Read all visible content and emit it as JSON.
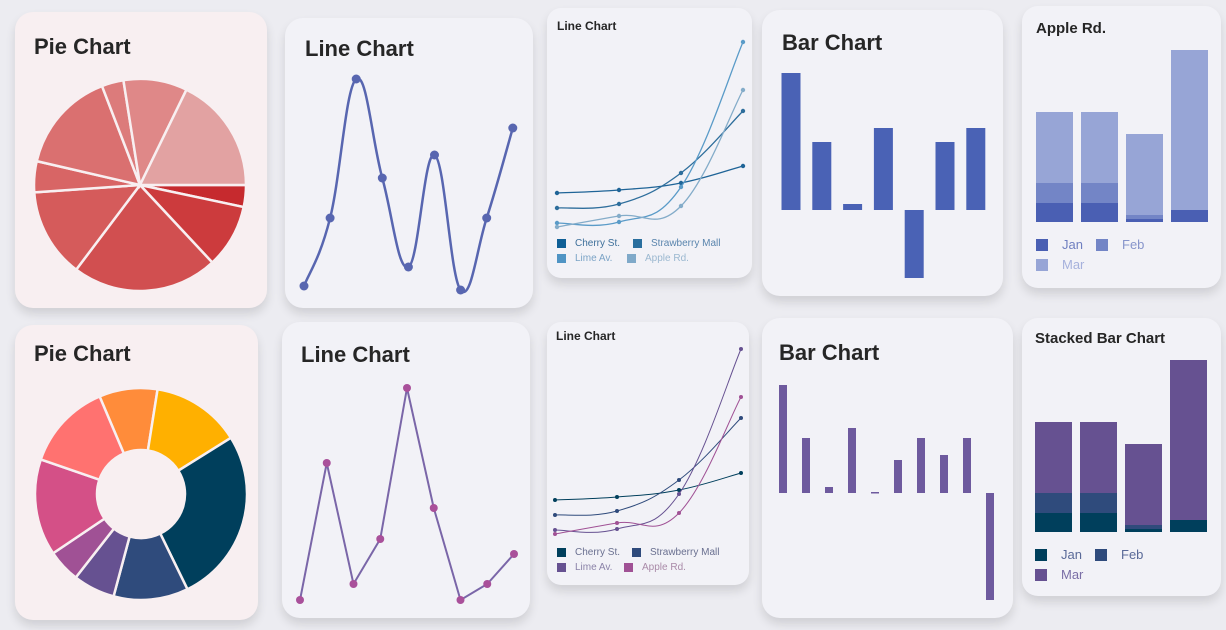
{
  "chart_data": [
    {
      "type": "pie",
      "title": "Pie Chart",
      "values": [
        12,
        35,
        80,
        49,
        17,
        56,
        12,
        35,
        64
      ],
      "colors": [
        "#c62a2e",
        "#cc3b3d",
        "#d14f50",
        "#d55b5b",
        "#d86565",
        "#da7070",
        "#dc7b7b",
        "#df8888",
        "#e2a2a2"
      ]
    },
    {
      "type": "line",
      "title": "Line Chart",
      "smooth": true,
      "values": [
        14,
        82,
        221,
        122,
        33,
        145,
        10,
        82,
        172
      ],
      "ylim": [
        0,
        230
      ],
      "color": "#5866b0"
    },
    {
      "type": "line",
      "title": "Line Chart",
      "smooth": true,
      "ylim": [
        0,
        220
      ],
      "series": [
        {
          "name": "Cherry St.",
          "values": [
            57,
            60,
            67,
            84
          ],
          "color": "#1f6497"
        },
        {
          "name": "Strawberry Mall",
          "values": [
            42,
            46,
            77,
            139
          ],
          "color": "#2e6e9c"
        },
        {
          "name": "Lime Av.",
          "values": [
            27,
            28,
            63,
            208
          ],
          "color": "#5a9bc8"
        },
        {
          "name": "Apple Rd.",
          "values": [
            23,
            34,
            44,
            160
          ],
          "color": "#84acc9"
        }
      ]
    },
    {
      "type": "bar",
      "title": "Bar Chart",
      "values": [
        137,
        68,
        6,
        82,
        -68,
        68,
        82
      ],
      "color": "#4a62b5"
    },
    {
      "type": "bar",
      "stacked": true,
      "title": "Apple Rd.",
      "series": [
        {
          "name": "Jan",
          "values": [
            19,
            19,
            3,
            12
          ],
          "color": "#4a5fb3"
        },
        {
          "name": "Feb",
          "values": [
            20,
            20,
            4,
            0
          ],
          "color": "#7385c6"
        },
        {
          "name": "Mar",
          "values": [
            71,
            71,
            81,
            160
          ],
          "color": "#97a5d6"
        }
      ]
    },
    {
      "type": "pie",
      "donut": true,
      "title": "Pie Chart",
      "values": [
        32,
        49,
        96,
        41,
        23,
        18,
        53,
        48
      ],
      "colors": [
        "#ff8c3a",
        "#ffb000",
        "#003f5c",
        "#2f4b7c",
        "#665191",
        "#a05195",
        "#d45087",
        "#ff7270"
      ]
    },
    {
      "type": "line",
      "title": "Line Chart",
      "smooth": false,
      "values": [
        10,
        147,
        26,
        71,
        222,
        102,
        10,
        26,
        56
      ],
      "ylim": [
        0,
        230
      ],
      "color": "#7a66a8",
      "marker_color": "#a9509a"
    },
    {
      "type": "line",
      "title": "Line Chart",
      "smooth": true,
      "ylim": [
        0,
        220
      ],
      "series": [
        {
          "name": "Cherry St.",
          "values": [
            57,
            60,
            67,
            84
          ],
          "color": "#003f5c"
        },
        {
          "name": "Strawberry Mall",
          "values": [
            42,
            46,
            77,
            139
          ],
          "color": "#2f4b7c"
        },
        {
          "name": "Lime Av.",
          "values": [
            27,
            28,
            63,
            208
          ],
          "color": "#665191"
        },
        {
          "name": "Apple Rd.",
          "values": [
            23,
            34,
            44,
            160
          ],
          "color": "#a05195"
        }
      ]
    },
    {
      "type": "bar",
      "title": "Bar Chart",
      "values": [
        108,
        55,
        6,
        65,
        1,
        33,
        55,
        38,
        55,
        -107
      ],
      "color": "#6e5a9e"
    },
    {
      "type": "bar",
      "stacked": true,
      "title": "Stacked Bar Chart",
      "series": [
        {
          "name": "Jan",
          "values": [
            19,
            19,
            3,
            12
          ],
          "color": "#003f5c"
        },
        {
          "name": "Feb",
          "values": [
            20,
            20,
            4,
            0
          ],
          "color": "#2f4b7c"
        },
        {
          "name": "Mar",
          "values": [
            71,
            71,
            81,
            160
          ],
          "color": "#665191"
        }
      ]
    }
  ]
}
